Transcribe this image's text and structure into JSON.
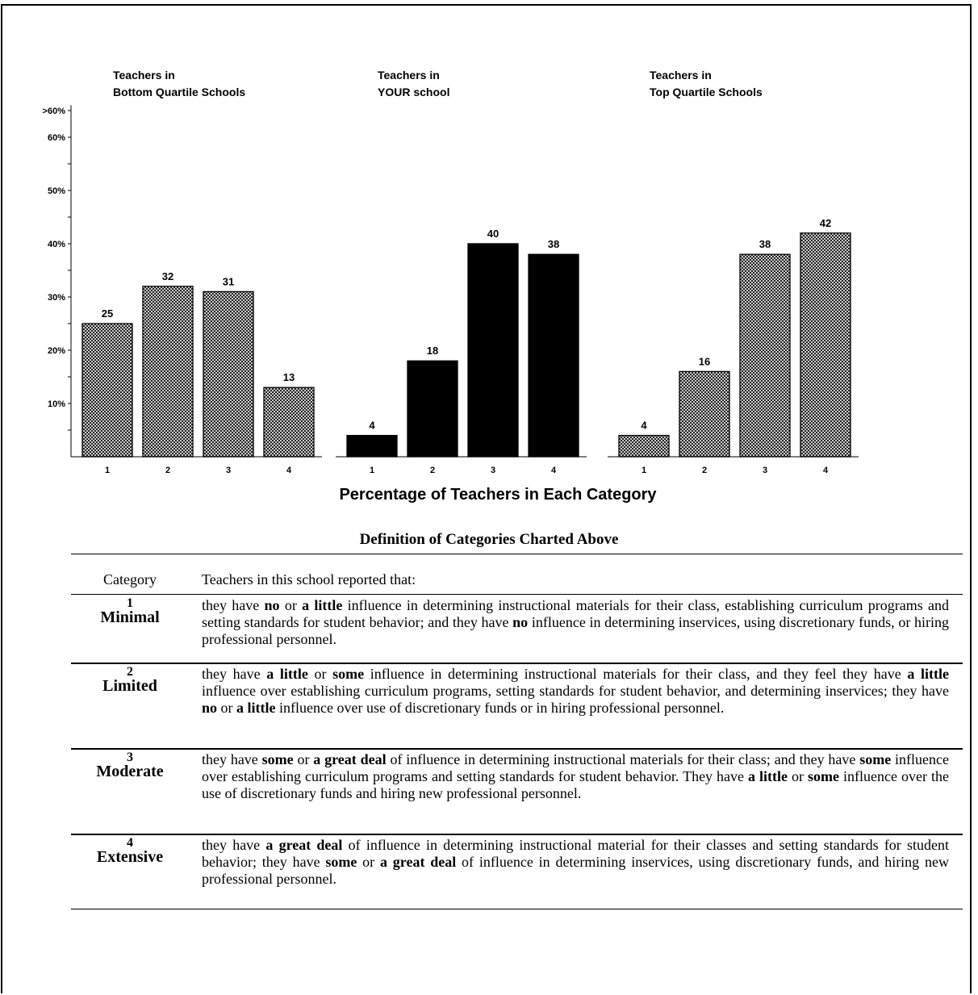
{
  "chart_data": {
    "type": "bar",
    "xlabel": "Percentage of Teachers in Each Category",
    "y_tick_labels": [
      "10%",
      "20%",
      "30%",
      "40%",
      "50%",
      "60%",
      ">60%"
    ],
    "ylim": [
      0,
      65
    ],
    "groups": [
      {
        "title_line1": "Teachers in",
        "title_line2": "Bottom Quartile Schools",
        "fill": "pattern",
        "categories": [
          "1",
          "2",
          "3",
          "4"
        ],
        "values": [
          25,
          32,
          31,
          13
        ]
      },
      {
        "title_line1": "Teachers in",
        "title_line2": "YOUR school",
        "fill": "solid",
        "categories": [
          "1",
          "2",
          "3",
          "4"
        ],
        "values": [
          4,
          18,
          40,
          38
        ]
      },
      {
        "title_line1": "Teachers in",
        "title_line2": "Top Quartile Schools",
        "fill": "pattern",
        "categories": [
          "1",
          "2",
          "3",
          "4"
        ],
        "values": [
          4,
          16,
          38,
          42
        ]
      }
    ]
  },
  "definitions": {
    "title": "Definition of Categories Charted Above",
    "header_category": "Category",
    "header_description": "Teachers in this school reported that:",
    "rows": [
      {
        "num": "1",
        "name": "Minimal",
        "segments": [
          {
            "t": "they have ",
            "b": false
          },
          {
            "t": "no",
            "b": true
          },
          {
            "t": " or ",
            "b": false
          },
          {
            "t": "a little",
            "b": true
          },
          {
            "t": " influence in determining instructional materials for their class, establishing curriculum programs and setting standards for student behavior; and they have ",
            "b": false
          },
          {
            "t": "no",
            "b": true
          },
          {
            "t": " influence in determining inservices, using discretionary funds, or hiring professional personnel.",
            "b": false
          }
        ]
      },
      {
        "num": "2",
        "name": "Limited",
        "segments": [
          {
            "t": "they have ",
            "b": false
          },
          {
            "t": "a little",
            "b": true
          },
          {
            "t": " or ",
            "b": false
          },
          {
            "t": "some",
            "b": true
          },
          {
            "t": " influence in determining instructional materials for their class, and they feel they have ",
            "b": false
          },
          {
            "t": "a little",
            "b": true
          },
          {
            "t": " influence over establishing curriculum programs, setting standards for student behavior, and determining inservices; they have ",
            "b": false
          },
          {
            "t": "no",
            "b": true
          },
          {
            "t": " or ",
            "b": false
          },
          {
            "t": "a little",
            "b": true
          },
          {
            "t": " influence over use of discretionary funds or in hiring professional personnel.",
            "b": false
          }
        ]
      },
      {
        "num": "3",
        "name": "Moderate",
        "segments": [
          {
            "t": "they have ",
            "b": false
          },
          {
            "t": "some",
            "b": true
          },
          {
            "t": " or ",
            "b": false
          },
          {
            "t": "a great deal",
            "b": true
          },
          {
            "t": " of influence in determining instructional materials for their class; and they have ",
            "b": false
          },
          {
            "t": "some",
            "b": true
          },
          {
            "t": " influence over establishing curriculum programs and setting standards for student behavior. They have ",
            "b": false
          },
          {
            "t": "a little",
            "b": true
          },
          {
            "t": " or ",
            "b": false
          },
          {
            "t": "some",
            "b": true
          },
          {
            "t": " influence over the use of discretionary funds and hiring new professional personnel.",
            "b": false
          }
        ]
      },
      {
        "num": "4",
        "name": "Extensive",
        "segments": [
          {
            "t": "they have ",
            "b": false
          },
          {
            "t": "a great deal",
            "b": true
          },
          {
            "t": " of influence in determining instructional material for their classes and setting standards for student behavior; they have ",
            "b": false
          },
          {
            "t": "some",
            "b": true
          },
          {
            "t": " or ",
            "b": false
          },
          {
            "t": "a great deal",
            "b": true
          },
          {
            "t": " of influence in determining inservices, using discretionary funds, and hiring new professional personnel.",
            "b": false
          }
        ]
      }
    ]
  }
}
